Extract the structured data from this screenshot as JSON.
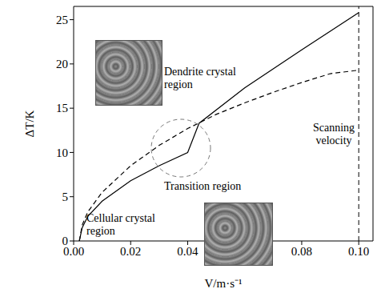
{
  "chart_data": {
    "type": "line",
    "x_label": "V/m·s⁻¹",
    "y_label": "ΔT/K",
    "xlim": [
      0,
      0.105
    ],
    "ylim": [
      0,
      26.5
    ],
    "xticks": [
      {
        "value": 0,
        "label": "0.00"
      },
      {
        "value": 0.02,
        "label": "0.02"
      },
      {
        "value": 0.04,
        "label": "0.04"
      },
      {
        "value": 0.06,
        "label": "0.06"
      },
      {
        "value": 0.08,
        "label": "0.08"
      },
      {
        "value": 0.1,
        "label": "0.10"
      }
    ],
    "yticks": [
      0,
      5,
      10,
      15,
      20,
      25
    ],
    "grid": false,
    "series": [
      {
        "color": "#000000",
        "line_style": "solid",
        "x": [
          0.002,
          0.003,
          0.005,
          0.01,
          0.02,
          0.03,
          0.04,
          0.044,
          0.06,
          0.08,
          0.1
        ],
        "values": [
          0,
          1.5,
          2.8,
          4.5,
          6.8,
          8.5,
          10,
          13.3,
          17.3,
          21.6,
          25.8
        ]
      },
      {
        "color": "#000000",
        "line_style": "dashed",
        "x": [
          0.002,
          0.003,
          0.005,
          0.01,
          0.02,
          0.03,
          0.04,
          0.05,
          0.06,
          0.07,
          0.08,
          0.09,
          0.1
        ],
        "values": [
          0,
          1.8,
          3.3,
          5.5,
          8.5,
          10.8,
          12.7,
          14.3,
          15.6,
          16.8,
          17.9,
          18.9,
          19.3
        ]
      }
    ],
    "annotations": [
      {
        "text": "Dendrite crystal region"
      },
      {
        "text": "Transition region"
      },
      {
        "text": "Cellular crystal region"
      },
      {
        "text": "Scanning velocity",
        "x": 0.1,
        "line_style": "dashed"
      }
    ]
  }
}
